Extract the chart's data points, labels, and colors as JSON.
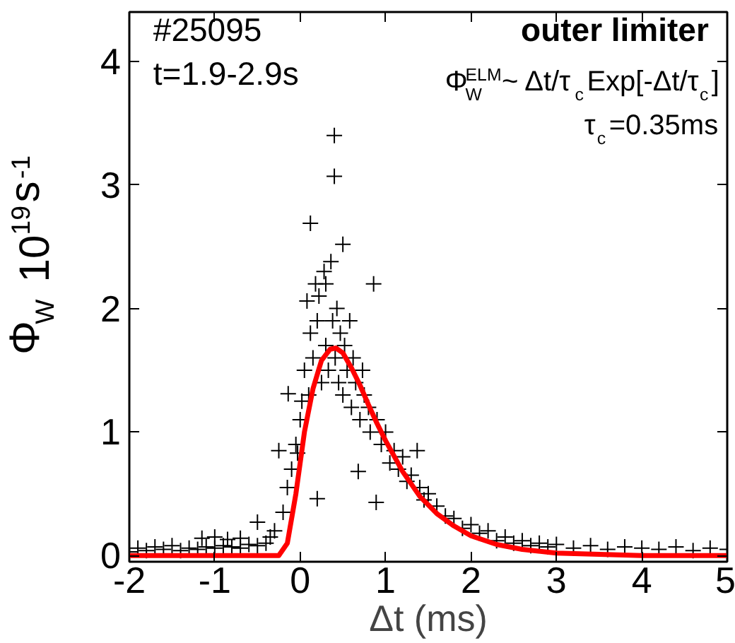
{
  "chart_data": {
    "type": "scatter",
    "xlabel": "Δt (ms)",
    "ylabel": "Φ$_{W}$ 10$^{19}$s$^{-1}$",
    "annotations": [
      "#25095",
      "t=1.9-2.9s",
      "outer limiter",
      "Φ$^{ELM}$$_{W}$~ Δt/τ$_{c}$Exp[-Δt/τ$_{c}$]",
      "τ$_{c}$=0.35ms"
    ],
    "xlim": [
      -2,
      5
    ],
    "ylim": [
      -0.05,
      4.4
    ],
    "xticks": [
      -2,
      -1,
      0,
      1,
      2,
      3,
      4,
      5
    ],
    "yticks": [
      0,
      1,
      2,
      3,
      4
    ],
    "series": [
      {
        "marker": "cross",
        "color": "#000000",
        "x": [
          -2.0,
          -1.9,
          -1.8,
          -1.7,
          -1.6,
          -1.5,
          -1.4,
          -1.3,
          -1.2,
          -1.1,
          -1.0,
          -0.9,
          -0.8,
          -0.7,
          -0.6,
          -0.5,
          -0.4,
          -1.15,
          -1.0,
          -0.85,
          -0.7,
          -0.5,
          -0.35,
          -0.3,
          -0.25,
          -0.2,
          -0.15,
          -0.14,
          -0.1,
          -0.05,
          -0.03,
          0.0,
          0.02,
          0.05,
          0.08,
          0.1,
          0.12,
          0.12,
          0.15,
          0.18,
          0.2,
          0.2,
          0.22,
          0.25,
          0.28,
          0.3,
          0.3,
          0.33,
          0.36,
          0.38,
          0.4,
          0.4,
          0.41,
          0.43,
          0.45,
          0.47,
          0.5,
          0.5,
          0.52,
          0.55,
          0.58,
          0.6,
          0.62,
          0.65,
          0.68,
          0.7,
          0.73,
          0.75,
          0.8,
          0.82,
          0.86,
          0.89,
          0.9,
          0.95,
          1.0,
          1.05,
          1.1,
          1.15,
          1.2,
          1.25,
          1.3,
          1.37,
          1.4,
          1.45,
          1.5,
          1.6,
          1.7,
          1.8,
          1.9,
          2.0,
          2.1,
          2.2,
          2.3,
          2.4,
          2.5,
          2.6,
          2.7,
          2.8,
          2.9,
          3.0,
          3.2,
          3.4,
          3.6,
          3.8,
          4.0,
          4.2,
          4.4,
          4.6,
          4.8,
          5.0
        ],
        "values": [
          0.03,
          0.06,
          0.04,
          0.07,
          0.05,
          0.08,
          0.04,
          0.06,
          0.05,
          0.07,
          0.06,
          0.08,
          0.07,
          0.06,
          0.09,
          0.08,
          0.1,
          0.14,
          0.15,
          0.13,
          0.14,
          0.27,
          0.15,
          0.2,
          0.85,
          0.35,
          0.55,
          1.31,
          0.7,
          0.9,
          0.83,
          1.1,
          1.25,
          1.5,
          2.06,
          1.3,
          2.69,
          1.8,
          1.6,
          2.2,
          0.46,
          1.9,
          2.1,
          1.4,
          2.3,
          1.7,
          2.2,
          1.5,
          2.38,
          1.9,
          3.4,
          3.07,
          1.6,
          2.0,
          1.4,
          1.8,
          2.52,
          1.3,
          1.7,
          1.5,
          1.9,
          1.2,
          1.6,
          1.4,
          0.68,
          1.1,
          1.5,
          1.3,
          1.2,
          1.0,
          2.2,
          0.43,
          1.1,
          0.9,
          1.0,
          0.75,
          0.85,
          0.7,
          0.8,
          0.6,
          0.65,
          0.85,
          0.55,
          0.45,
          0.5,
          0.4,
          0.32,
          0.3,
          0.22,
          0.25,
          0.18,
          0.2,
          0.12,
          0.15,
          0.1,
          0.12,
          0.08,
          0.1,
          0.07,
          0.09,
          0.06,
          0.08,
          0.05,
          0.07,
          0.06,
          0.05,
          0.07,
          0.04,
          0.06,
          0.05
        ]
      },
      {
        "type": "line",
        "color": "#ff0000",
        "x": [
          -2,
          -0.25,
          -0.15,
          -0.05,
          0.05,
          0.15,
          0.25,
          0.35,
          0.42,
          0.5,
          0.6,
          0.7,
          0.8,
          0.9,
          1.0,
          1.2,
          1.4,
          1.6,
          1.8,
          2.0,
          2.3,
          2.6,
          3.0,
          4.0,
          5.0
        ],
        "values": [
          0,
          0,
          0.1,
          0.5,
          1.0,
          1.35,
          1.58,
          1.67,
          1.68,
          1.64,
          1.52,
          1.38,
          1.22,
          1.07,
          0.93,
          0.68,
          0.48,
          0.34,
          0.24,
          0.16,
          0.09,
          0.05,
          0.02,
          0.0,
          0.0
        ]
      }
    ]
  }
}
